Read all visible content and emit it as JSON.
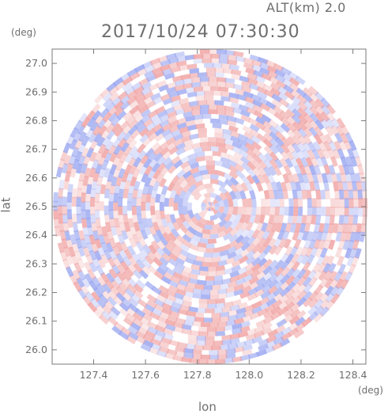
{
  "header": {
    "altitude": "ALT(km) 2.0",
    "datetime": "2017/10/24 07:30:30"
  },
  "chart_data": {
    "type": "heatmap",
    "title": "2017/10/24 07:30:30",
    "subtitle": "ALT(km) 2.0",
    "xlabel": "lon",
    "ylabel": "lat",
    "x_unit": "(deg)",
    "y_unit": "(deg)",
    "xlim": [
      127.24,
      128.45
    ],
    "ylim": [
      25.95,
      27.05
    ],
    "x_ticks": [
      "127.4",
      "127.6",
      "127.8",
      "128.0",
      "128.2",
      "128.4"
    ],
    "y_ticks": [
      "26.0",
      "26.1",
      "26.2",
      "26.3",
      "26.4",
      "26.5",
      "26.6",
      "26.7",
      "26.8",
      "26.9",
      "27.0"
    ],
    "center": {
      "lon": 127.85,
      "lat": 26.5
    },
    "radius_deg_lat": 0.55,
    "colormap": {
      "negative": "#9aa6f0",
      "positive": "#f0a2a2",
      "zero": "#ffffff"
    },
    "grid": false
  }
}
